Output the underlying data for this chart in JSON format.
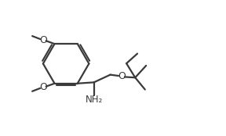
{
  "bg_color": "#ffffff",
  "line_color": "#3a3a3a",
  "line_width": 1.6,
  "font_size": 8.5,
  "label_NH2": "NH₂",
  "label_O1": "O",
  "label_O2": "O",
  "label_O3": "O"
}
